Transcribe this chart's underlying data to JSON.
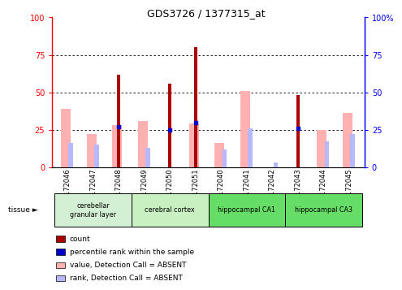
{
  "title": "GDS3726 / 1377315_at",
  "samples": [
    "GSM172046",
    "GSM172047",
    "GSM172048",
    "GSM172049",
    "GSM172050",
    "GSM172051",
    "GSM172040",
    "GSM172041",
    "GSM172042",
    "GSM172043",
    "GSM172044",
    "GSM172045"
  ],
  "count": [
    0,
    0,
    62,
    0,
    56,
    80,
    0,
    0,
    0,
    48,
    0,
    0
  ],
  "percentile_rank": [
    0,
    0,
    27,
    0,
    25,
    30,
    0,
    0,
    0,
    26,
    0,
    0
  ],
  "value_absent": [
    39,
    22,
    28,
    31,
    0,
    29,
    16,
    51,
    0,
    0,
    25,
    36
  ],
  "rank_absent": [
    16,
    15,
    0,
    13,
    0,
    0,
    12,
    26,
    3,
    0,
    17,
    22
  ],
  "tissue_groups": [
    {
      "label": "cerebellar\ngranular layer",
      "start": 0,
      "end": 3,
      "color": "#d4f0d4"
    },
    {
      "label": "cerebral cortex",
      "start": 3,
      "end": 6,
      "color": "#c8f0c0"
    },
    {
      "label": "hippocampal CA1",
      "start": 6,
      "end": 9,
      "color": "#66dd66"
    },
    {
      "label": "hippocampal CA3",
      "start": 9,
      "end": 12,
      "color": "#66dd66"
    }
  ],
  "color_count": "#aa0000",
  "color_percentile": "#0000cc",
  "color_value_absent": "#ffb0b0",
  "color_rank_absent": "#b8b8ff",
  "ylim": [
    0,
    100
  ],
  "grid_values": [
    25,
    50,
    75
  ],
  "legend_items": [
    {
      "label": "count",
      "color": "#aa0000"
    },
    {
      "label": "percentile rank within the sample",
      "color": "#0000cc"
    },
    {
      "label": "value, Detection Call = ABSENT",
      "color": "#ffb0b0"
    },
    {
      "label": "rank, Detection Call = ABSENT",
      "color": "#b8b8ff"
    }
  ]
}
